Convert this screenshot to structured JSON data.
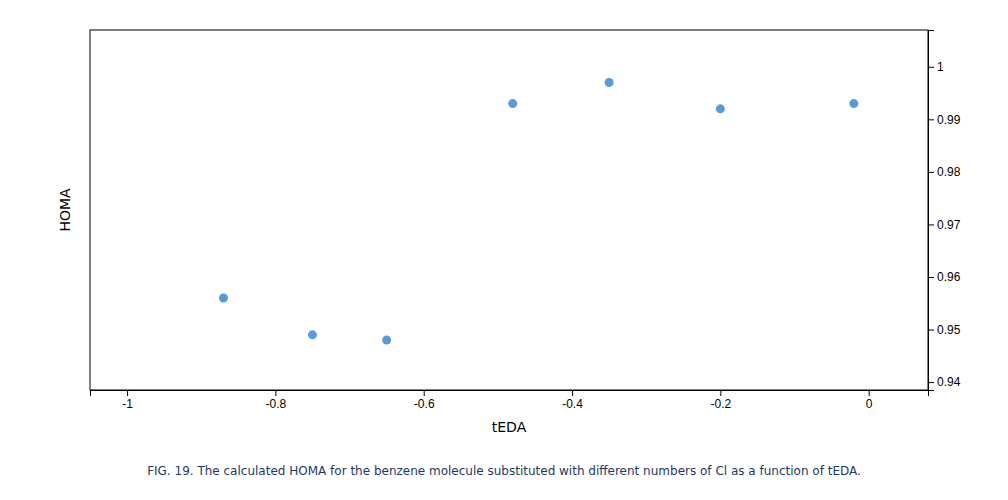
{
  "chart_data": {
    "type": "scatter",
    "title": "FIG. 19. The calculated HOMA for the benzene molecule substituted with different numbers of Cl as a function of tEDA.",
    "x_label": "tEDA",
    "y_label": "HOMA",
    "x": [
      -0.87,
      -0.75,
      -0.65,
      -0.48,
      -0.35,
      -0.2,
      -0.02
    ],
    "values": [
      0.956,
      0.949,
      0.948,
      0.993,
      0.997,
      0.992,
      0.993
    ],
    "color": "#5B9BD5",
    "xlim": [
      -1.05,
      0.08
    ],
    "ylim": [
      0.9385,
      1.007
    ],
    "xticks": [
      -1,
      -0.8,
      -0.6,
      -0.4,
      -0.2,
      0
    ],
    "yticks": [
      0.94,
      0.95,
      0.96,
      0.97,
      0.98,
      0.99,
      1
    ],
    "grid": false
  }
}
